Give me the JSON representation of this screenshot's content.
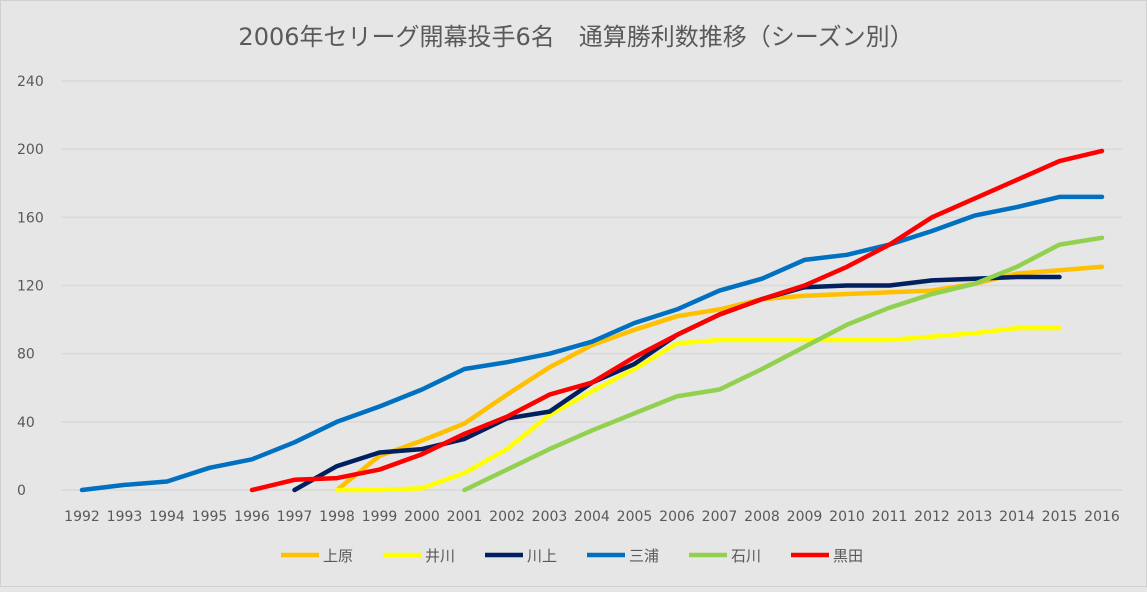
{
  "chart_data": {
    "type": "line",
    "title": "2006年セリーグ開幕投手6名　通算勝利数推移（シーズン別）",
    "xlabel": "",
    "ylabel": "",
    "x": [
      1992,
      1993,
      1994,
      1995,
      1996,
      1997,
      1998,
      1999,
      2000,
      2001,
      2002,
      2003,
      2004,
      2005,
      2006,
      2007,
      2008,
      2009,
      2010,
      2011,
      2012,
      2013,
      2014,
      2015,
      2016
    ],
    "x_tick_labels": [
      "1992",
      "1993",
      "1994",
      "1995",
      "1996",
      "1997",
      "1998",
      "1999",
      "2000",
      "2001",
      "2002",
      "2003",
      "2004",
      "2005",
      "2006",
      "2007",
      "2008",
      "2009",
      "2010",
      "2011",
      "2012",
      "2013",
      "2014",
      "2015",
      "2016"
    ],
    "ylim": [
      0,
      240
    ],
    "y_ticks": [
      0,
      40,
      80,
      120,
      160,
      200,
      240
    ],
    "y_tick_labels": [
      "0",
      "40",
      "80",
      "120",
      "160",
      "200",
      "240"
    ],
    "grid": "horizontal",
    "legend_position": "bottom",
    "series": [
      {
        "name": "上原",
        "color": "#FFC000",
        "values": [
          null,
          null,
          null,
          null,
          null,
          null,
          0,
          20,
          29,
          39,
          56,
          72,
          85,
          94,
          102,
          106,
          112,
          114,
          115,
          116,
          117,
          121,
          127,
          129,
          131
        ]
      },
      {
        "name": "井川",
        "color": "#FFFF00",
        "values": [
          null,
          null,
          null,
          null,
          null,
          null,
          0,
          0,
          1,
          10,
          24,
          44,
          58,
          71,
          86,
          88,
          88,
          88,
          88,
          88,
          90,
          92,
          95,
          95,
          null
        ]
      },
      {
        "name": "川上",
        "color": "#002060",
        "values": [
          null,
          null,
          null,
          null,
          null,
          0,
          14,
          22,
          24,
          30,
          42,
          46,
          63,
          74,
          91,
          103,
          112,
          119,
          120,
          120,
          123,
          124,
          125,
          125,
          null
        ]
      },
      {
        "name": "三浦",
        "color": "#0070C0",
        "values": [
          0,
          3,
          5,
          13,
          18,
          28,
          40,
          49,
          59,
          71,
          75,
          80,
          87,
          98,
          106,
          117,
          124,
          135,
          138,
          144,
          152,
          161,
          166,
          172,
          172
        ]
      },
      {
        "name": "石川",
        "color": "#92D050",
        "values": [
          null,
          null,
          null,
          null,
          null,
          null,
          null,
          null,
          null,
          0,
          12,
          24,
          35,
          45,
          55,
          59,
          71,
          84,
          97,
          107,
          115,
          121,
          131,
          144,
          148
        ]
      },
      {
        "name": "黒田",
        "color": "#FF0000",
        "values": [
          null,
          null,
          null,
          null,
          0,
          6,
          7,
          12,
          21,
          33,
          43,
          56,
          63,
          78,
          91,
          103,
          112,
          120,
          131,
          144,
          160,
          171,
          182,
          193,
          199
        ]
      }
    ]
  }
}
